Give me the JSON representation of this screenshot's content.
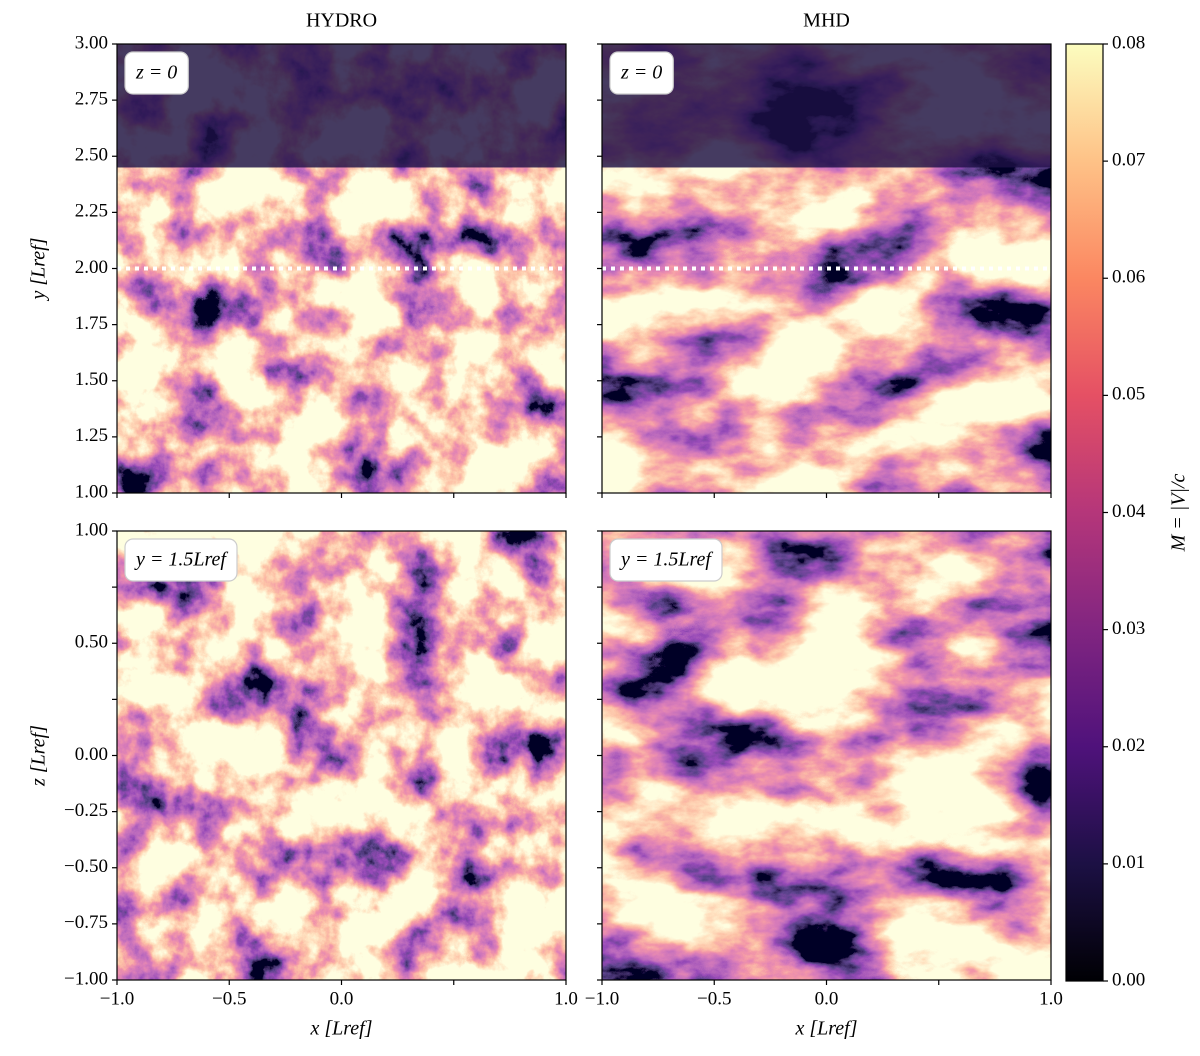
{
  "chart_data": [
    {
      "type": "heatmap",
      "title": "HYDRO",
      "annotation": "z = 0",
      "ylabel": "y [Lref]",
      "colormap": "magma",
      "hline": 2,
      "xlim": [
        -1,
        1
      ],
      "ylim": [
        1,
        3
      ],
      "xticks": [
        -1,
        -0.5,
        0,
        0.5,
        1
      ],
      "yticks": [
        {
          "value": 1,
          "label": "1.00"
        },
        {
          "value": 1.25,
          "label": "1.25"
        },
        {
          "value": 1.5,
          "label": "1.50"
        },
        {
          "value": 1.75,
          "label": "1.75"
        },
        {
          "value": 2,
          "label": "2.00"
        },
        {
          "value": 2.25,
          "label": "2.25"
        },
        {
          "value": 2.5,
          "label": "2.50"
        },
        {
          "value": 2.75,
          "label": "2.75"
        },
        {
          "value": 3,
          "label": "3.00"
        }
      ]
    },
    {
      "type": "heatmap",
      "title": "MHD",
      "annotation": "z = 0",
      "colormap": "magma",
      "hline": 2,
      "xlim": [
        -1,
        1
      ],
      "ylim": [
        1,
        3
      ],
      "xticks": [
        -1,
        -0.5,
        0,
        0.5,
        1
      ],
      "yticks": [
        1,
        1.25,
        1.5,
        1.75,
        2,
        2.25,
        2.5,
        2.75,
        3
      ]
    },
    {
      "type": "heatmap",
      "annotation": "y = 1.5Lref",
      "xlabel": "x [Lref]",
      "ylabel": "z [Lref]",
      "colormap": "magma",
      "xlim": [
        -1,
        1
      ],
      "ylim": [
        -1,
        1
      ],
      "xticks": [
        {
          "value": -1,
          "label": "−1.0"
        },
        {
          "value": -0.5,
          "label": "−0.5"
        },
        {
          "value": 0,
          "label": "0.0"
        },
        0.5,
        {
          "value": 1,
          "label": "1.0"
        }
      ],
      "yticks": [
        {
          "value": -1,
          "label": "−1.00"
        },
        {
          "value": -0.75,
          "label": "−0.75"
        },
        {
          "value": -0.5,
          "label": "−0.50"
        },
        {
          "value": -0.25,
          "label": "−0.25"
        },
        {
          "value": 0,
          "label": "0.00"
        },
        0.25,
        {
          "value": 0.5,
          "label": "0.50"
        },
        0.75,
        {
          "value": 1,
          "label": "1.00"
        }
      ]
    },
    {
      "type": "heatmap",
      "annotation": "y = 1.5Lref",
      "xlabel": "x [Lref]",
      "colormap": "magma",
      "xlim": [
        -1,
        1
      ],
      "ylim": [
        -1,
        1
      ],
      "xticks": [
        {
          "value": -1,
          "label": "−1.0"
        },
        {
          "value": -0.5,
          "label": "−0.5"
        },
        {
          "value": 0,
          "label": "0.0"
        },
        0.5,
        {
          "value": 1,
          "label": "1.0"
        }
      ],
      "yticks": [
        -1,
        -0.75,
        -0.5,
        -0.25,
        0,
        0.25,
        0.5,
        0.75,
        1
      ]
    },
    {
      "type": "colorbar",
      "label": "M = |V|/c",
      "colormap": "magma",
      "ylim": [
        0,
        0.08
      ],
      "yticks": [
        {
          "value": 0,
          "label": "0.00"
        },
        0.01,
        0.02,
        0.03,
        0.04,
        0.05,
        0.06,
        0.07,
        0.08
      ]
    }
  ]
}
